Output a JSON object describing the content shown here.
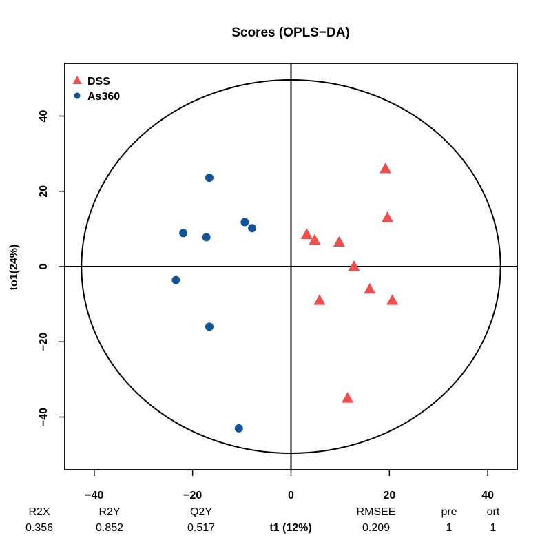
{
  "chart_data": {
    "type": "scatter",
    "title": "Scores (OPLS−DA)",
    "xlabel": "t1 (12%)",
    "ylabel": "to1(24%)",
    "xlim": [
      -46,
      46
    ],
    "ylim": [
      -54,
      54
    ],
    "xticks": [
      -40,
      -20,
      0,
      20,
      40
    ],
    "xtick_labels": [
      "−40",
      "−20",
      "0",
      "20",
      "40"
    ],
    "yticks": [
      -40,
      -20,
      0,
      20,
      40
    ],
    "ytick_labels": [
      "−40",
      "−20",
      "0",
      "20",
      "40"
    ],
    "ellipse": {
      "rx": 42.6,
      "ry": 49.6
    },
    "legend_position": "top-left",
    "series": [
      {
        "name": "DSS",
        "marker": "triangle",
        "color": "#f04e4e",
        "points": [
          [
            19.2,
            26
          ],
          [
            19.6,
            13
          ],
          [
            3.2,
            8.5
          ],
          [
            4.8,
            7
          ],
          [
            9.8,
            6.5
          ],
          [
            12.8,
            0
          ],
          [
            16,
            -6
          ],
          [
            20.6,
            -9
          ],
          [
            5.8,
            -9
          ],
          [
            11.5,
            -35
          ]
        ]
      },
      {
        "name": "As360",
        "marker": "circle",
        "color": "#0f5499",
        "points": [
          [
            -16.6,
            23.6
          ],
          [
            -9.4,
            11.8
          ],
          [
            -7.9,
            10.2
          ],
          [
            -21.9,
            8.9
          ],
          [
            -17.2,
            7.8
          ],
          [
            -23.4,
            -3.6
          ],
          [
            -16.6,
            -16
          ],
          [
            -10.6,
            -43
          ]
        ]
      }
    ],
    "stats": [
      {
        "label": "R2X",
        "value": "0.356"
      },
      {
        "label": "R2Y",
        "value": "0.852"
      },
      {
        "label": "Q2Y",
        "value": "0.517"
      },
      {
        "label": "RMSEE",
        "value": "0.209"
      },
      {
        "label": "pre",
        "value": "1"
      },
      {
        "label": "ort",
        "value": "1"
      }
    ]
  }
}
